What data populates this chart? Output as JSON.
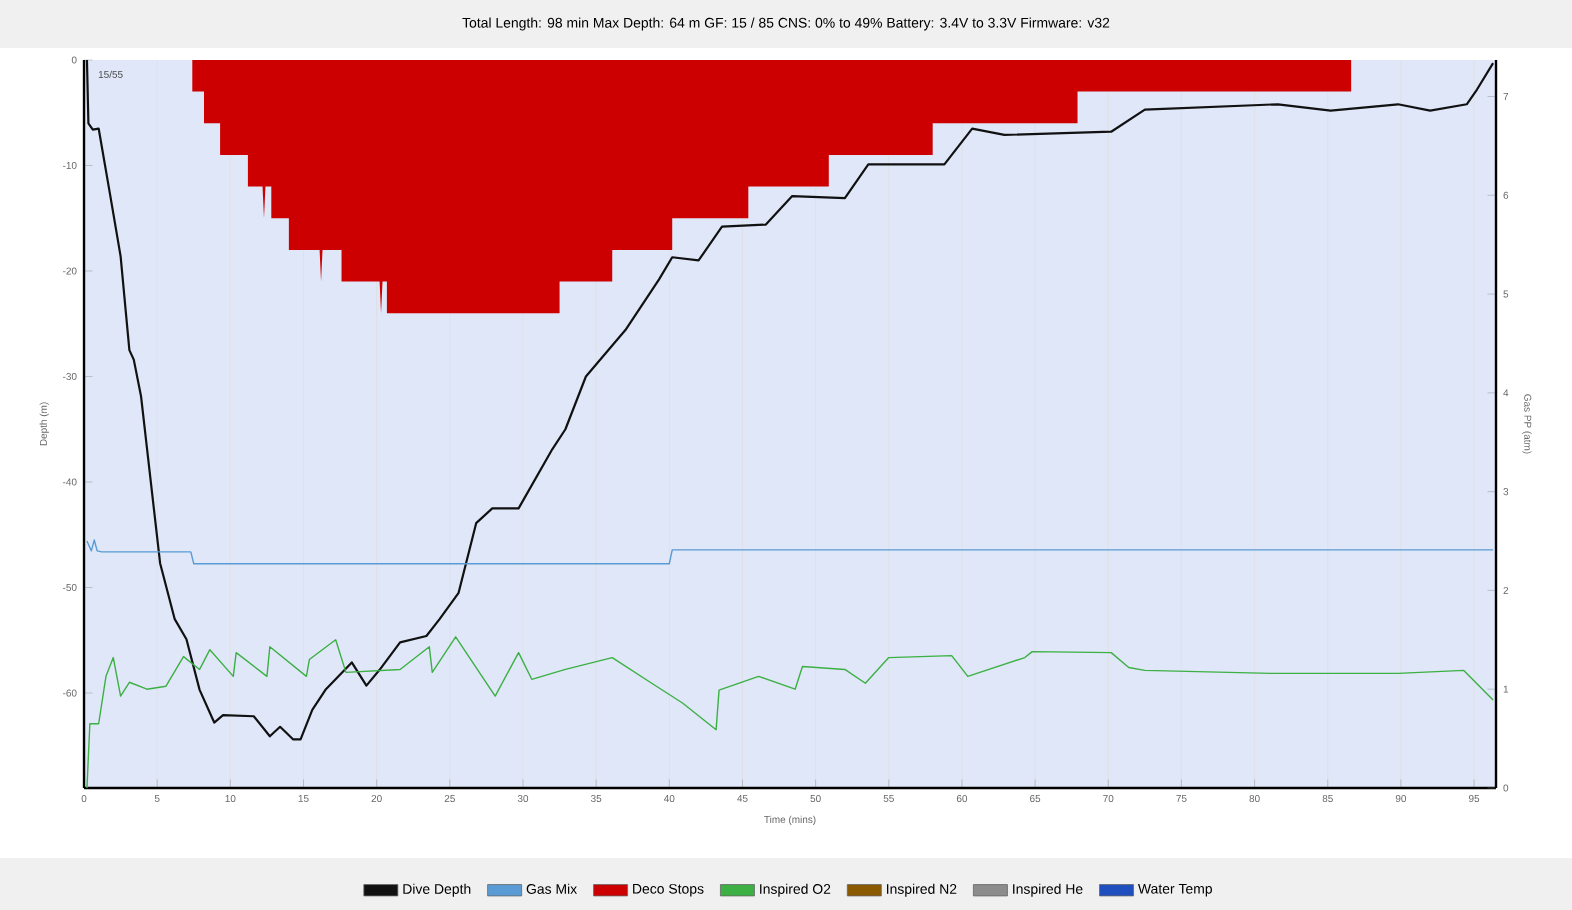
{
  "chart_data": {
    "type": "line",
    "title": "Total Length: 98 min     Max Depth: 64 m     GF: 15 / 85     CNS: 0% to 49%     Battery: 3.4V to 3.3V     Firmware: v32",
    "xlabel": "Time (mins)",
    "ylabel": "Depth (m)",
    "y2label": "Gas PP (atm)",
    "annotations": [
      "15/55"
    ],
    "xlim": [
      0,
      96.5
    ],
    "xticks": [
      0,
      5,
      10,
      15,
      20,
      25,
      30,
      35,
      40,
      45,
      50,
      55,
      60,
      65,
      70,
      75,
      80,
      85,
      90,
      95
    ],
    "ylim": [
      -69,
      0
    ],
    "yticks": [
      0,
      -10,
      -20,
      -30,
      -40,
      -50,
      -60
    ],
    "y2lim": [
      0,
      7.37
    ],
    "y2ticks": [
      0,
      1,
      2,
      3,
      4,
      5,
      6,
      7
    ],
    "grid": "x",
    "legend": "bottom",
    "series": [
      {
        "name": "Dive Depth",
        "color": "#111111",
        "x": [
          0.2,
          0.3,
          0.6,
          1.0,
          1.8,
          2.5,
          3.1,
          3.4,
          3.9,
          5.2,
          6.2,
          7.0,
          7.9,
          8.9,
          9.5,
          11.6,
          12.7,
          13.4,
          14.3,
          14.8,
          15.6,
          16.5,
          18.3,
          19.3,
          20.2,
          21.6,
          23.4,
          24.3,
          25.6,
          26.8,
          27.9,
          29.7,
          32.0,
          32.9,
          34.3,
          37.0,
          39.3,
          40.2,
          42.0,
          43.6,
          46.6,
          48.4,
          52.0,
          53.6,
          58.8,
          60.7,
          62.9,
          70.2,
          72.5,
          81.6,
          85.2,
          89.8,
          92.0,
          94.5,
          95.2,
          96.3
        ],
        "values": [
          0,
          -6.0,
          -6.6,
          -6.5,
          -12.9,
          -18.6,
          -27.5,
          -28.4,
          -31.9,
          -47.7,
          -53.0,
          -54.9,
          -59.7,
          -62.8,
          -62.1,
          -62.2,
          -64.1,
          -63.2,
          -64.4,
          -64.4,
          -61.6,
          -59.7,
          -57.1,
          -59.3,
          -57.8,
          -55.2,
          -54.6,
          -53.0,
          -50.5,
          -43.9,
          -42.5,
          -42.5,
          -36.9,
          -35.0,
          -30.0,
          -25.6,
          -20.8,
          -18.7,
          -19.0,
          -15.8,
          -15.6,
          -12.9,
          -13.1,
          -9.9,
          -9.9,
          -6.5,
          -7.1,
          -6.8,
          -4.7,
          -4.2,
          -4.8,
          -4.2,
          -4.8,
          -4.2,
          -2.8,
          -0.3
        ]
      },
      {
        "name": "Gas Mix",
        "color": "#5b9bd5",
        "axis": "y2",
        "x": [
          0.2,
          0.5,
          0.7,
          0.9,
          1.2,
          7.3,
          7.5,
          40.0,
          40.2,
          96.3
        ],
        "values": [
          2.5,
          2.4,
          2.51,
          2.4,
          2.39,
          2.39,
          2.27,
          2.27,
          2.41,
          2.41
        ]
      },
      {
        "name": "Deco Stops",
        "color": "#cc0000",
        "type": "area",
        "x": [
          7.4,
          8.2,
          8.2,
          9.3,
          9.3,
          11.2,
          11.2,
          12.2,
          12.3,
          12.4,
          12.8,
          12.8,
          14.0,
          14.0,
          16.1,
          16.2,
          16.3,
          17.6,
          17.6,
          20.2,
          20.3,
          20.4,
          20.7,
          20.7,
          32.5,
          32.5,
          36.1,
          36.1,
          40.2,
          40.2,
          45.4,
          45.4,
          50.9,
          50.9,
          58.0,
          58.0,
          67.9,
          67.9,
          86.6
        ],
        "values": [
          -3,
          -3,
          -6,
          -6,
          -9,
          -9,
          -12,
          -12,
          -15,
          -12,
          -12,
          -15,
          -15,
          -18,
          -18,
          -21,
          -18,
          -18,
          -21,
          -21,
          -24,
          -21,
          -21,
          -24,
          -24,
          -21,
          -21,
          -18,
          -18,
          -15,
          -15,
          -12,
          -12,
          -9,
          -9,
          -6,
          -6,
          -3,
          -3
        ]
      },
      {
        "name": "Inspired O2",
        "color": "#3cb043",
        "axis": "y2",
        "x": [
          0.2,
          0.4,
          1.0,
          1.5,
          2.0,
          2.5,
          3.1,
          4.3,
          5.6,
          6.8,
          7.9,
          8.6,
          10.2,
          10.4,
          12.5,
          12.7,
          15.2,
          15.4,
          17.2,
          17.9,
          21.6,
          23.6,
          23.8,
          25.4,
          28.1,
          29.7,
          30.6,
          32.9,
          36.1,
          38.8,
          40.9,
          43.2,
          43.4,
          46.1,
          48.6,
          49.1,
          52.0,
          53.4,
          55.0,
          59.3,
          60.4,
          64.3,
          64.8,
          70.2,
          71.4,
          72.5,
          81.1,
          89.8,
          94.3,
          96.3
        ],
        "values": [
          0,
          0.65,
          0.65,
          1.13,
          1.32,
          0.93,
          1.07,
          1.0,
          1.03,
          1.33,
          1.2,
          1.4,
          1.13,
          1.37,
          1.13,
          1.43,
          1.13,
          1.3,
          1.5,
          1.17,
          1.2,
          1.43,
          1.17,
          1.53,
          0.93,
          1.37,
          1.1,
          1.2,
          1.32,
          1.06,
          0.86,
          0.59,
          0.99,
          1.13,
          1.0,
          1.23,
          1.2,
          1.06,
          1.32,
          1.34,
          1.13,
          1.32,
          1.38,
          1.37,
          1.22,
          1.19,
          1.16,
          1.16,
          1.19,
          0.89
        ]
      },
      {
        "name": "Inspired N2",
        "color": "#8b5a00",
        "axis": "y2"
      },
      {
        "name": "Inspired He",
        "color": "#8c8c8c",
        "axis": "y2"
      },
      {
        "name": "Water Temp",
        "color": "#1f4fbf"
      }
    ]
  }
}
